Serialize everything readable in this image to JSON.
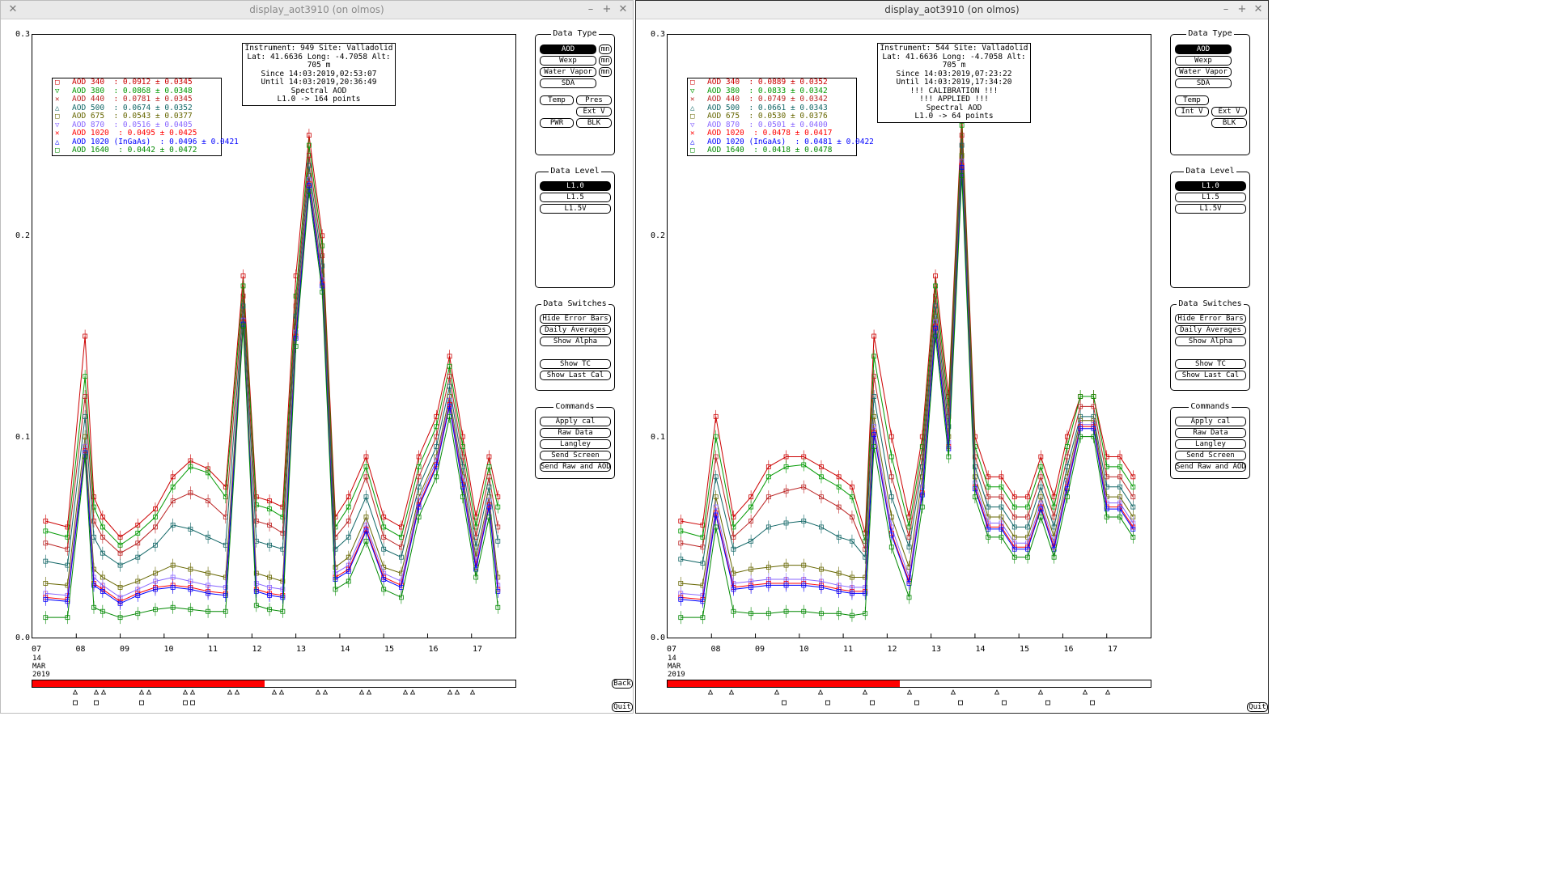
{
  "colors": {
    "aod340": "#cc0000",
    "aod380": "#009900",
    "aod440": "#bb2222",
    "aod500": "#116666",
    "aod675": "#666600",
    "aod870": "#8866ff",
    "aod1020": "#ff0000",
    "aod1020ingaas": "#0000ff",
    "aod1640": "#008800",
    "progress": "#ff0000"
  },
  "windows": [
    {
      "title": "display_aot3910 (on olmos)",
      "info_lines": [
        "Instrument: 949 Site: Valladolid",
        "Lat: 41.6636 Long: -4.7058 Alt: 705 m",
        "Since 14:03:2019,02:53:07",
        "Until 14:03:2019,20:36:49",
        "Spectral AOD",
        "L1.0 -> 164 points"
      ],
      "legend": [
        {
          "name": "AOD 340",
          "text": "  : 0.0912 ± 0.0345",
          "color_key": "aod340",
          "marker": "□"
        },
        {
          "name": "AOD 380",
          "text": "  : 0.0868 ± 0.0348",
          "color_key": "aod380",
          "marker": "▽"
        },
        {
          "name": "AOD 440",
          "text": "  : 0.0781 ± 0.0345",
          "color_key": "aod440",
          "marker": "✕"
        },
        {
          "name": "AOD 500",
          "text": "  : 0.0674 ± 0.0352",
          "color_key": "aod500",
          "marker": "△"
        },
        {
          "name": "AOD 675",
          "text": "  : 0.0543 ± 0.0377",
          "color_key": "aod675",
          "marker": "□"
        },
        {
          "name": "AOD 870",
          "text": "  : 0.0516 ± 0.0405",
          "color_key": "aod870",
          "marker": "▽"
        },
        {
          "name": "AOD 1020",
          "text": "  : 0.0495 ± 0.0425",
          "color_key": "aod1020",
          "marker": "✕"
        },
        {
          "name": "AOD 1020 (InGaAs)",
          "text": "  : 0.0496 ± 0.0421",
          "color_key": "aod1020ingaas",
          "marker": "△"
        },
        {
          "name": "AOD 1640",
          "text": "  : 0.0442 ± 0.0472",
          "color_key": "aod1640",
          "marker": "□"
        }
      ],
      "progress": 0.48,
      "data_type_buttons": {
        "aod": "AOD",
        "mn1": "mn",
        "wexp": "Wexp",
        "mn2": "mn",
        "water_vapor": "Water Vapor",
        "mn3": "mn",
        "sda": "SDA",
        "temp": "Temp",
        "pres": "Pres",
        "ext_v": "Ext V",
        "pwr": "PWR",
        "blk": "BLK"
      },
      "back_label": "Back",
      "quit_label": "Quit"
    },
    {
      "title": "display_aot3910 (on olmos)",
      "info_lines": [
        "Instrument: 544 Site: Valladolid",
        "Lat: 41.6636 Long: -4.7058 Alt: 705 m",
        "Since 14:03:2019,07:23:22",
        "Until 14:03:2019,17:34:20",
        "!!! CALIBRATION !!!",
        "!!!   APPLIED   !!!",
        "Spectral AOD",
        "L1.0 -> 64 points"
      ],
      "legend": [
        {
          "name": "AOD 340",
          "text": "  : 0.0889 ± 0.0352",
          "color_key": "aod340",
          "marker": "□"
        },
        {
          "name": "AOD 380",
          "text": "  : 0.0833 ± 0.0342",
          "color_key": "aod380",
          "marker": "▽"
        },
        {
          "name": "AOD 440",
          "text": "  : 0.0749 ± 0.0342",
          "color_key": "aod440",
          "marker": "✕"
        },
        {
          "name": "AOD 500",
          "text": "  : 0.0661 ± 0.0343",
          "color_key": "aod500",
          "marker": "△"
        },
        {
          "name": "AOD 675",
          "text": "  : 0.0530 ± 0.0376",
          "color_key": "aod675",
          "marker": "□"
        },
        {
          "name": "AOD 870",
          "text": "  : 0.0501 ± 0.0400",
          "color_key": "aod870",
          "marker": "▽"
        },
        {
          "name": "AOD 1020",
          "text": "  : 0.0478 ± 0.0417",
          "color_key": "aod1020",
          "marker": "✕"
        },
        {
          "name": "AOD 1020 (InGaAs)",
          "text": "  : 0.0481 ± 0.0422",
          "color_key": "aod1020ingaas",
          "marker": "△"
        },
        {
          "name": "AOD 1640",
          "text": "  : 0.0418 ± 0.0478",
          "color_key": "aod1640",
          "marker": "□"
        }
      ],
      "progress": 0.48,
      "data_type_buttons": {
        "aod": "AOD",
        "wexp": "Wexp",
        "water_vapor": "Water Vapor",
        "sda": "SDA",
        "temp": "Temp",
        "int_v": "Int V",
        "ext_v": "Ext V",
        "blk": "BLK"
      },
      "quit_label": "Quit"
    }
  ],
  "panels": {
    "data_type_title": "Data Type",
    "data_level_title": "Data Level",
    "data_level_buttons": [
      "L1.0",
      "L1.5",
      "L1.5V"
    ],
    "data_switches_title": "Data Switches",
    "data_switches_buttons": [
      "Hide Error Bars",
      "Daily Averages",
      "Show Alpha",
      "Show TC",
      "Show Last Cal"
    ],
    "commands_title": "Commands",
    "commands_buttons": [
      "Apply cal",
      "Raw Data",
      "Langley",
      "Send Screen",
      "Send Raw and AOD"
    ]
  },
  "axis": {
    "y_ticks": [
      "0.3",
      "0.2",
      "0.1",
      "0.0"
    ],
    "x_ticks": [
      "07",
      "08",
      "09",
      "10",
      "11",
      "12",
      "13",
      "14",
      "15",
      "16",
      "17"
    ],
    "date_lines": [
      "14",
      "MAR",
      "2019"
    ]
  },
  "chart_data": [
    {
      "type": "line",
      "xlabel": "",
      "ylabel": "",
      "ylim": [
        0.0,
        0.3
      ],
      "xlim": [
        7.0,
        18.0
      ],
      "x": [
        7.3,
        7.8,
        8.2,
        8.4,
        8.6,
        9.0,
        9.4,
        9.8,
        10.2,
        10.6,
        11.0,
        11.4,
        11.8,
        12.1,
        12.4,
        12.7,
        13.0,
        13.3,
        13.6,
        13.9,
        14.2,
        14.6,
        15.0,
        15.4,
        15.8,
        16.2,
        16.5,
        16.8,
        17.1,
        17.4,
        17.6
      ],
      "series": [
        {
          "name": "AOD 340",
          "values": [
            0.058,
            0.055,
            0.15,
            0.07,
            0.06,
            0.05,
            0.056,
            0.064,
            0.08,
            0.088,
            0.084,
            0.075,
            0.18,
            0.07,
            0.068,
            0.065,
            0.18,
            0.25,
            0.2,
            0.06,
            0.07,
            0.09,
            0.06,
            0.055,
            0.09,
            0.11,
            0.14,
            0.1,
            0.06,
            0.09,
            0.07
          ]
        },
        {
          "name": "AOD 380",
          "values": [
            0.053,
            0.05,
            0.13,
            0.065,
            0.055,
            0.046,
            0.052,
            0.06,
            0.075,
            0.085,
            0.082,
            0.07,
            0.175,
            0.066,
            0.064,
            0.06,
            0.17,
            0.245,
            0.195,
            0.055,
            0.065,
            0.085,
            0.055,
            0.05,
            0.085,
            0.105,
            0.135,
            0.095,
            0.055,
            0.085,
            0.065
          ]
        },
        {
          "name": "AOD 440",
          "values": [
            0.047,
            0.044,
            0.12,
            0.058,
            0.05,
            0.042,
            0.047,
            0.055,
            0.068,
            0.072,
            0.068,
            0.06,
            0.17,
            0.058,
            0.056,
            0.052,
            0.165,
            0.24,
            0.19,
            0.05,
            0.058,
            0.08,
            0.05,
            0.045,
            0.08,
            0.1,
            0.13,
            0.09,
            0.05,
            0.08,
            0.055
          ]
        },
        {
          "name": "AOD 500",
          "values": [
            0.038,
            0.036,
            0.11,
            0.05,
            0.042,
            0.036,
            0.04,
            0.046,
            0.056,
            0.054,
            0.05,
            0.046,
            0.165,
            0.048,
            0.046,
            0.044,
            0.16,
            0.235,
            0.185,
            0.044,
            0.05,
            0.07,
            0.044,
            0.04,
            0.075,
            0.095,
            0.125,
            0.085,
            0.045,
            0.075,
            0.048
          ]
        },
        {
          "name": "AOD 675",
          "values": [
            0.027,
            0.026,
            0.1,
            0.034,
            0.03,
            0.025,
            0.028,
            0.032,
            0.036,
            0.034,
            0.032,
            0.03,
            0.16,
            0.032,
            0.03,
            0.028,
            0.155,
            0.23,
            0.18,
            0.035,
            0.04,
            0.06,
            0.035,
            0.032,
            0.07,
            0.09,
            0.12,
            0.08,
            0.04,
            0.07,
            0.03
          ]
        },
        {
          "name": "AOD 870",
          "values": [
            0.022,
            0.021,
            0.095,
            0.03,
            0.026,
            0.02,
            0.024,
            0.028,
            0.03,
            0.028,
            0.026,
            0.025,
            0.158,
            0.027,
            0.025,
            0.024,
            0.152,
            0.228,
            0.178,
            0.032,
            0.036,
            0.056,
            0.032,
            0.028,
            0.068,
            0.088,
            0.118,
            0.078,
            0.037,
            0.068,
            0.026
          ]
        },
        {
          "name": "AOD 1020",
          "values": [
            0.02,
            0.019,
            0.093,
            0.027,
            0.024,
            0.018,
            0.022,
            0.025,
            0.026,
            0.025,
            0.023,
            0.022,
            0.157,
            0.024,
            0.022,
            0.021,
            0.15,
            0.226,
            0.176,
            0.03,
            0.034,
            0.054,
            0.03,
            0.026,
            0.066,
            0.086,
            0.116,
            0.076,
            0.035,
            0.066,
            0.024
          ]
        },
        {
          "name": "AOD 1020 (InGaAs)",
          "values": [
            0.019,
            0.018,
            0.092,
            0.026,
            0.023,
            0.017,
            0.021,
            0.024,
            0.025,
            0.024,
            0.022,
            0.021,
            0.156,
            0.023,
            0.021,
            0.02,
            0.149,
            0.225,
            0.175,
            0.029,
            0.033,
            0.053,
            0.029,
            0.025,
            0.065,
            0.085,
            0.115,
            0.075,
            0.034,
            0.065,
            0.023
          ]
        },
        {
          "name": "AOD 1640",
          "values": [
            0.01,
            0.01,
            0.09,
            0.015,
            0.013,
            0.01,
            0.012,
            0.014,
            0.015,
            0.014,
            0.013,
            0.013,
            0.155,
            0.016,
            0.014,
            0.013,
            0.145,
            0.222,
            0.172,
            0.024,
            0.028,
            0.048,
            0.024,
            0.02,
            0.06,
            0.08,
            0.11,
            0.07,
            0.03,
            0.06,
            0.015
          ]
        }
      ]
    },
    {
      "type": "line",
      "xlabel": "",
      "ylabel": "",
      "ylim": [
        0.0,
        0.3
      ],
      "xlim": [
        7.0,
        18.0
      ],
      "x": [
        7.3,
        7.8,
        8.1,
        8.5,
        8.9,
        9.3,
        9.7,
        10.1,
        10.5,
        10.9,
        11.2,
        11.5,
        11.7,
        12.1,
        12.5,
        12.8,
        13.1,
        13.4,
        13.7,
        14.0,
        14.3,
        14.6,
        14.9,
        15.2,
        15.5,
        15.8,
        16.1,
        16.4,
        16.7,
        17.0,
        17.3,
        17.6
      ],
      "series": [
        {
          "name": "AOD 340",
          "values": [
            0.058,
            0.056,
            0.11,
            0.06,
            0.07,
            0.085,
            0.09,
            0.09,
            0.085,
            0.08,
            0.075,
            0.052,
            0.15,
            0.1,
            0.06,
            0.1,
            0.18,
            0.12,
            0.26,
            0.1,
            0.08,
            0.08,
            0.07,
            0.07,
            0.09,
            0.07,
            0.1,
            0.12,
            0.12,
            0.09,
            0.09,
            0.08
          ]
        },
        {
          "name": "AOD 380",
          "values": [
            0.053,
            0.05,
            0.1,
            0.055,
            0.065,
            0.08,
            0.085,
            0.086,
            0.08,
            0.075,
            0.07,
            0.048,
            0.14,
            0.09,
            0.055,
            0.095,
            0.175,
            0.115,
            0.255,
            0.095,
            0.075,
            0.075,
            0.065,
            0.065,
            0.085,
            0.065,
            0.095,
            0.12,
            0.12,
            0.085,
            0.085,
            0.075
          ]
        },
        {
          "name": "AOD 440",
          "values": [
            0.047,
            0.045,
            0.09,
            0.05,
            0.058,
            0.07,
            0.073,
            0.075,
            0.07,
            0.065,
            0.06,
            0.044,
            0.13,
            0.08,
            0.05,
            0.09,
            0.17,
            0.11,
            0.25,
            0.09,
            0.07,
            0.07,
            0.06,
            0.06,
            0.08,
            0.06,
            0.09,
            0.115,
            0.115,
            0.08,
            0.08,
            0.07
          ]
        },
        {
          "name": "AOD 500",
          "values": [
            0.039,
            0.037,
            0.08,
            0.044,
            0.048,
            0.055,
            0.057,
            0.058,
            0.055,
            0.05,
            0.048,
            0.04,
            0.12,
            0.07,
            0.045,
            0.085,
            0.165,
            0.105,
            0.245,
            0.085,
            0.065,
            0.065,
            0.055,
            0.055,
            0.075,
            0.055,
            0.085,
            0.11,
            0.11,
            0.075,
            0.075,
            0.065
          ]
        },
        {
          "name": "AOD 675",
          "values": [
            0.027,
            0.026,
            0.07,
            0.032,
            0.034,
            0.035,
            0.036,
            0.036,
            0.034,
            0.032,
            0.03,
            0.03,
            0.11,
            0.06,
            0.035,
            0.08,
            0.16,
            0.1,
            0.24,
            0.08,
            0.06,
            0.06,
            0.05,
            0.05,
            0.07,
            0.05,
            0.08,
            0.108,
            0.108,
            0.07,
            0.07,
            0.06
          ]
        },
        {
          "name": "AOD 870",
          "values": [
            0.022,
            0.021,
            0.065,
            0.027,
            0.028,
            0.029,
            0.029,
            0.029,
            0.028,
            0.026,
            0.025,
            0.025,
            0.105,
            0.055,
            0.03,
            0.075,
            0.157,
            0.097,
            0.237,
            0.077,
            0.057,
            0.057,
            0.047,
            0.047,
            0.067,
            0.047,
            0.077,
            0.106,
            0.106,
            0.067,
            0.067,
            0.057
          ]
        },
        {
          "name": "AOD 1020",
          "values": [
            0.02,
            0.019,
            0.062,
            0.025,
            0.026,
            0.027,
            0.027,
            0.027,
            0.026,
            0.024,
            0.023,
            0.023,
            0.102,
            0.052,
            0.028,
            0.072,
            0.155,
            0.095,
            0.235,
            0.075,
            0.055,
            0.055,
            0.045,
            0.045,
            0.065,
            0.045,
            0.075,
            0.105,
            0.105,
            0.065,
            0.065,
            0.055
          ]
        },
        {
          "name": "AOD 1020 (InGaAs)",
          "values": [
            0.019,
            0.018,
            0.061,
            0.024,
            0.025,
            0.026,
            0.026,
            0.026,
            0.025,
            0.023,
            0.022,
            0.022,
            0.101,
            0.051,
            0.027,
            0.071,
            0.154,
            0.094,
            0.234,
            0.074,
            0.054,
            0.054,
            0.044,
            0.044,
            0.064,
            0.044,
            0.074,
            0.104,
            0.104,
            0.064,
            0.064,
            0.054
          ]
        },
        {
          "name": "AOD 1640",
          "values": [
            0.01,
            0.01,
            0.055,
            0.013,
            0.012,
            0.012,
            0.013,
            0.013,
            0.012,
            0.012,
            0.011,
            0.012,
            0.095,
            0.045,
            0.02,
            0.065,
            0.15,
            0.09,
            0.23,
            0.07,
            0.05,
            0.05,
            0.04,
            0.04,
            0.06,
            0.04,
            0.07,
            0.1,
            0.1,
            0.06,
            0.06,
            0.05
          ]
        }
      ]
    }
  ]
}
